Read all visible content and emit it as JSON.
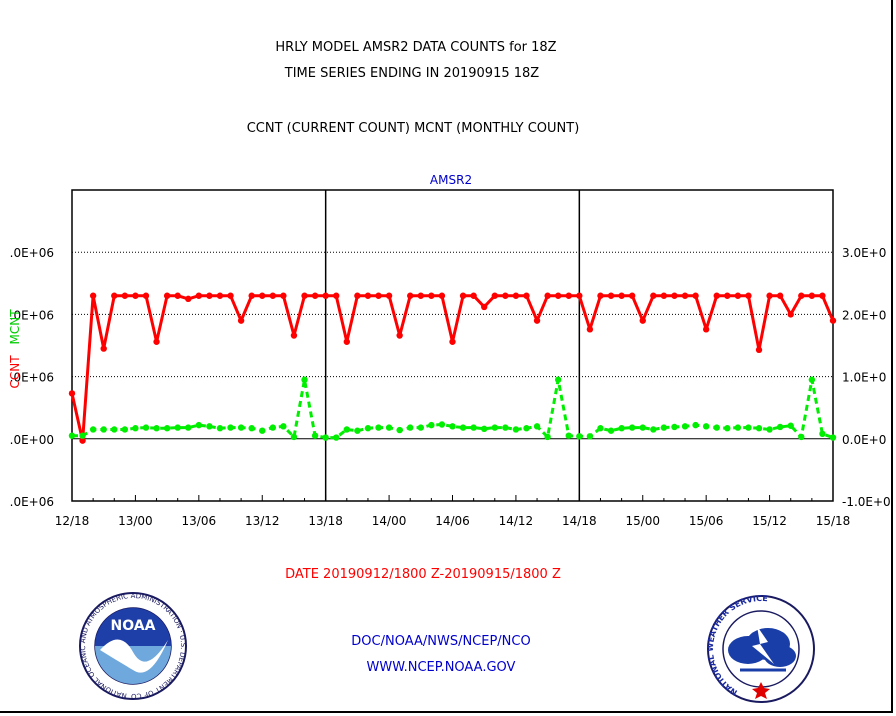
{
  "header": {
    "line1": "HRLY MODEL AMSR2 DATA COUNTS for 18Z",
    "line2": "TIME SERIES ENDING IN 20190915 18Z",
    "line3": "CCNT (CURRENT COUNT) MCNT (MONTHLY COUNT)"
  },
  "footer": {
    "date_range": "DATE 20190912/1800 Z-20190915/1800 Z",
    "org_path": "DOC/NOAA/NWS/NCEP/NCO",
    "website": "WWW.NCEP.NOAA.GOV"
  },
  "logos": {
    "noaa_text": "NOAA",
    "noaa_ring_text": "NATIONAL OCEANIC AND ATMOSPHERIC ADMINISTRATION · U.S. DEPARTMENT OF COMMERCE",
    "nws_ring_text": "NATIONAL WEATHER SERVICE"
  },
  "colors": {
    "ccnt": "#ff0000",
    "mcnt": "#00ee00",
    "title_blue": "#0000cc",
    "date_red": "#ff0000",
    "axis": "#000000"
  },
  "chart_data": {
    "type": "line",
    "title": "AMSR2",
    "ylabel_left_series": "CCNT",
    "ylabel_right_series": "MCNT",
    "x_unit": "hours from 12/18",
    "x_ticks": [
      {
        "x": 0,
        "label": "12/18"
      },
      {
        "x": 6,
        "label": "13/00"
      },
      {
        "x": 12,
        "label": "13/06"
      },
      {
        "x": 18,
        "label": "13/12"
      },
      {
        "x": 24,
        "label": "13/18"
      },
      {
        "x": 30,
        "label": "14/00"
      },
      {
        "x": 36,
        "label": "14/06"
      },
      {
        "x": 42,
        "label": "14/12"
      },
      {
        "x": 48,
        "label": "14/18"
      },
      {
        "x": 54,
        "label": "15/00"
      },
      {
        "x": 60,
        "label": "15/06"
      },
      {
        "x": 66,
        "label": "15/12"
      },
      {
        "x": 72,
        "label": "15/18"
      }
    ],
    "xlim": [
      0,
      72
    ],
    "day_dividers": [
      24,
      48
    ],
    "y_left": {
      "ylim": [
        -1000000,
        4000000
      ],
      "ticks": [
        {
          "v": 3000000,
          "label": ".0E+06"
        },
        {
          "v": 2000000,
          "label": ".0E+06"
        },
        {
          "v": 1000000,
          "label": ".0E+06"
        },
        {
          "v": 0,
          "label": ".0E+00"
        },
        {
          "v": -1000000,
          "label": ".0E+06"
        }
      ]
    },
    "y_right": {
      "ylim": [
        -1000000,
        4000000
      ],
      "ticks": [
        {
          "v": 3000000,
          "label": "3.0E+0"
        },
        {
          "v": 2000000,
          "label": "2.0E+0"
        },
        {
          "v": 1000000,
          "label": "1.0E+0"
        },
        {
          "v": 0,
          "label": "0.0E+0"
        },
        {
          "v": -1000000,
          "label": "-1.0E+0"
        }
      ]
    },
    "grid_y": [
      3000000,
      2000000,
      1000000,
      -1000000
    ],
    "series": [
      {
        "name": "CCNT",
        "style": "solid",
        "points": [
          [
            0,
            730000
          ],
          [
            1,
            -30000
          ],
          [
            2,
            2300000
          ],
          [
            3,
            1450000
          ],
          [
            4,
            2300000
          ],
          [
            5,
            2300000
          ],
          [
            6,
            2300000
          ],
          [
            7,
            2300000
          ],
          [
            8,
            1560000
          ],
          [
            9,
            2300000
          ],
          [
            10,
            2300000
          ],
          [
            11,
            2250000
          ],
          [
            12,
            2300000
          ],
          [
            13,
            2300000
          ],
          [
            14,
            2300000
          ],
          [
            15,
            2300000
          ],
          [
            16,
            1900000
          ],
          [
            17,
            2300000
          ],
          [
            18,
            2300000
          ],
          [
            19,
            2300000
          ],
          [
            20,
            2300000
          ],
          [
            21,
            1660000
          ],
          [
            22,
            2300000
          ],
          [
            23,
            2300000
          ],
          [
            24,
            2300000
          ],
          [
            25,
            2300000
          ],
          [
            26,
            1560000
          ],
          [
            27,
            2300000
          ],
          [
            28,
            2300000
          ],
          [
            29,
            2300000
          ],
          [
            30,
            2300000
          ],
          [
            31,
            1660000
          ],
          [
            32,
            2300000
          ],
          [
            33,
            2300000
          ],
          [
            34,
            2300000
          ],
          [
            35,
            2300000
          ],
          [
            36,
            1560000
          ],
          [
            37,
            2300000
          ],
          [
            38,
            2300000
          ],
          [
            39,
            2120000
          ],
          [
            40,
            2300000
          ],
          [
            41,
            2300000
          ],
          [
            42,
            2300000
          ],
          [
            43,
            2300000
          ],
          [
            44,
            1900000
          ],
          [
            45,
            2300000
          ],
          [
            46,
            2300000
          ],
          [
            47,
            2300000
          ],
          [
            48,
            2300000
          ],
          [
            49,
            1760000
          ],
          [
            50,
            2300000
          ],
          [
            51,
            2300000
          ],
          [
            52,
            2300000
          ],
          [
            53,
            2300000
          ],
          [
            54,
            1900000
          ],
          [
            55,
            2300000
          ],
          [
            56,
            2300000
          ],
          [
            57,
            2300000
          ],
          [
            58,
            2300000
          ],
          [
            59,
            2300000
          ],
          [
            60,
            1760000
          ],
          [
            61,
            2300000
          ],
          [
            62,
            2300000
          ],
          [
            63,
            2300000
          ],
          [
            64,
            2300000
          ],
          [
            65,
            1430000
          ],
          [
            66,
            2300000
          ],
          [
            67,
            2300000
          ],
          [
            68,
            2000000
          ],
          [
            69,
            2300000
          ],
          [
            70,
            2300000
          ],
          [
            71,
            2300000
          ],
          [
            72,
            1900000
          ]
        ]
      },
      {
        "name": "MCNT",
        "style": "dashed",
        "points": [
          [
            0,
            50000
          ],
          [
            1,
            50000
          ],
          [
            2,
            150000
          ],
          [
            3,
            150000
          ],
          [
            4,
            150000
          ],
          [
            5,
            150000
          ],
          [
            6,
            170000
          ],
          [
            7,
            180000
          ],
          [
            8,
            170000
          ],
          [
            9,
            170000
          ],
          [
            10,
            180000
          ],
          [
            11,
            180000
          ],
          [
            12,
            220000
          ],
          [
            13,
            200000
          ],
          [
            14,
            170000
          ],
          [
            15,
            180000
          ],
          [
            16,
            180000
          ],
          [
            17,
            170000
          ],
          [
            18,
            130000
          ],
          [
            19,
            180000
          ],
          [
            20,
            200000
          ],
          [
            21,
            30000
          ],
          [
            22,
            950000
          ],
          [
            23,
            50000
          ],
          [
            24,
            20000
          ],
          [
            25,
            20000
          ],
          [
            26,
            150000
          ],
          [
            27,
            130000
          ],
          [
            28,
            170000
          ],
          [
            29,
            180000
          ],
          [
            30,
            180000
          ],
          [
            31,
            140000
          ],
          [
            32,
            180000
          ],
          [
            33,
            180000
          ],
          [
            34,
            220000
          ],
          [
            35,
            230000
          ],
          [
            36,
            200000
          ],
          [
            37,
            180000
          ],
          [
            38,
            180000
          ],
          [
            39,
            160000
          ],
          [
            40,
            180000
          ],
          [
            41,
            180000
          ],
          [
            42,
            150000
          ],
          [
            43,
            170000
          ],
          [
            44,
            200000
          ],
          [
            45,
            30000
          ],
          [
            46,
            950000
          ],
          [
            47,
            50000
          ],
          [
            48,
            40000
          ],
          [
            49,
            40000
          ],
          [
            50,
            170000
          ],
          [
            51,
            130000
          ],
          [
            52,
            170000
          ],
          [
            53,
            180000
          ],
          [
            54,
            180000
          ],
          [
            55,
            150000
          ],
          [
            56,
            180000
          ],
          [
            57,
            190000
          ],
          [
            58,
            200000
          ],
          [
            59,
            220000
          ],
          [
            60,
            200000
          ],
          [
            61,
            180000
          ],
          [
            62,
            170000
          ],
          [
            63,
            180000
          ],
          [
            64,
            180000
          ],
          [
            65,
            170000
          ],
          [
            66,
            150000
          ],
          [
            67,
            190000
          ],
          [
            68,
            210000
          ],
          [
            69,
            30000
          ],
          [
            70,
            950000
          ],
          [
            71,
            80000
          ],
          [
            72,
            20000
          ]
        ]
      }
    ]
  }
}
